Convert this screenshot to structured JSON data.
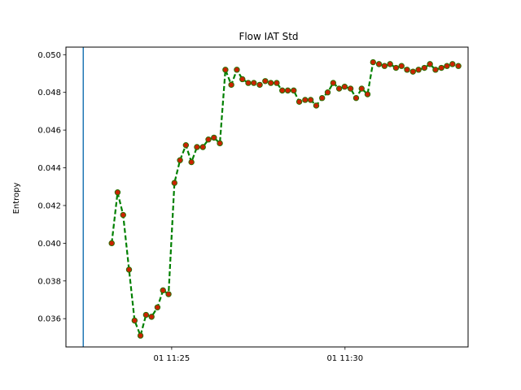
{
  "chart_data": {
    "type": "line",
    "title": "Flow IAT Std",
    "xlabel": "",
    "ylabel": "Entropy",
    "x_ticks": [
      {
        "minutes": 25,
        "label": "01 11:25"
      },
      {
        "minutes": 30,
        "label": "01 11:30"
      }
    ],
    "xlim_minutes": [
      21.95,
      33.55
    ],
    "ylim": [
      0.0345,
      0.0504
    ],
    "y_ticks": [
      0.036,
      0.038,
      0.04,
      0.042,
      0.044,
      0.046,
      0.048,
      0.05
    ],
    "y_tick_labels": [
      "0.036",
      "0.038",
      "0.040",
      "0.042",
      "0.044",
      "0.046",
      "0.048",
      "0.050"
    ],
    "vertical_line": {
      "minutes": 22.45,
      "color": "#1f77b4"
    },
    "grid": false,
    "series": [
      {
        "line_color": "#008000",
        "line_style": "dashed",
        "marker_fill": "#cc2200",
        "marker_edge": "#2a6e00",
        "x_minutes": [
          23.27,
          23.44,
          23.6,
          23.77,
          23.93,
          24.1,
          24.26,
          24.42,
          24.59,
          24.75,
          24.91,
          25.08,
          25.24,
          25.41,
          25.57,
          25.73,
          25.9,
          26.06,
          26.22,
          26.39,
          26.55,
          26.72,
          26.88,
          27.04,
          27.21,
          27.37,
          27.54,
          27.7,
          27.86,
          28.03,
          28.19,
          28.35,
          28.52,
          28.68,
          28.85,
          29.01,
          29.17,
          29.34,
          29.5,
          29.66,
          29.83,
          29.99,
          30.16,
          30.32,
          30.48,
          30.65,
          30.81,
          30.98,
          31.14,
          31.3,
          31.47,
          31.63,
          31.79,
          31.96,
          32.12,
          32.29,
          32.45,
          32.61,
          32.78,
          32.94,
          33.1,
          33.27
        ],
        "y": [
          0.04,
          0.0427,
          0.0415,
          0.0386,
          0.0359,
          0.0351,
          0.0362,
          0.0361,
          0.0366,
          0.0375,
          0.0373,
          0.0432,
          0.0444,
          0.0452,
          0.0443,
          0.0451,
          0.0451,
          0.0455,
          0.0456,
          0.0453,
          0.0492,
          0.0484,
          0.0492,
          0.0487,
          0.0485,
          0.0485,
          0.0484,
          0.0486,
          0.0485,
          0.0485,
          0.0481,
          0.0481,
          0.0481,
          0.0475,
          0.0476,
          0.0476,
          0.0473,
          0.0477,
          0.048,
          0.0485,
          0.0482,
          0.0483,
          0.0482,
          0.0477,
          0.0482,
          0.0479,
          0.0496,
          0.0495,
          0.0494,
          0.0495,
          0.0493,
          0.0494,
          0.0492,
          0.0491,
          0.0492,
          0.0493,
          0.0495,
          0.0492,
          0.0493,
          0.0494,
          0.0495,
          0.0494
        ]
      }
    ]
  }
}
